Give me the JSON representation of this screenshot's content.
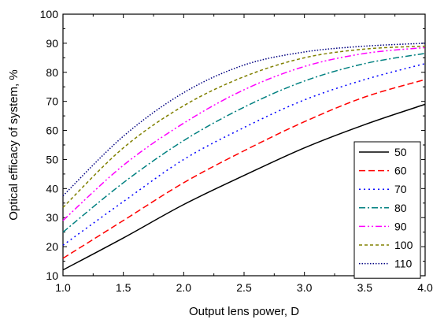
{
  "chart_data": {
    "type": "line",
    "title": "",
    "xlabel": "Output lens power, D",
    "ylabel": "Optical efficacy of system, %",
    "xlim": [
      1.0,
      4.0
    ],
    "ylim": [
      10,
      100
    ],
    "x_ticks": [
      1.0,
      1.5,
      2.0,
      2.5,
      3.0,
      3.5,
      4.0
    ],
    "x_tick_labels": [
      "1.0",
      "1.5",
      "2.0",
      "2.5",
      "3.0",
      "3.5",
      "4.0"
    ],
    "y_ticks": [
      10,
      20,
      30,
      40,
      50,
      60,
      70,
      80,
      90,
      100
    ],
    "y_tick_labels": [
      "10",
      "20",
      "30",
      "40",
      "50",
      "60",
      "70",
      "80",
      "90",
      "100"
    ],
    "grid": false,
    "legend_position": "right",
    "x": [
      1.0,
      1.5,
      2.0,
      2.5,
      3.0,
      3.5,
      4.0
    ],
    "series": [
      {
        "name": "50",
        "color": "#000000",
        "dash": "solid",
        "values": [
          12.0,
          23.0,
          34.5,
          44.5,
          54.0,
          62.0,
          69.0
        ]
      },
      {
        "name": "60",
        "color": "#ff0000",
        "dash": "dash",
        "values": [
          16.0,
          29.0,
          42.0,
          53.0,
          63.0,
          71.5,
          77.5
        ]
      },
      {
        "name": "70",
        "color": "#0000ff",
        "dash": "dot",
        "values": [
          20.5,
          35.5,
          50.0,
          61.0,
          70.5,
          77.5,
          83.0
        ]
      },
      {
        "name": "80",
        "color": "#008080",
        "dash": "dashdot",
        "values": [
          25.0,
          42.0,
          56.5,
          68.0,
          77.0,
          83.0,
          86.5
        ]
      },
      {
        "name": "90",
        "color": "#ff00ff",
        "dash": "dashdotdot",
        "values": [
          29.0,
          48.0,
          62.5,
          74.0,
          82.0,
          86.5,
          88.5
        ]
      },
      {
        "name": "100",
        "color": "#808000",
        "dash": "shortdash",
        "values": [
          33.5,
          54.0,
          68.5,
          78.5,
          85.0,
          88.0,
          89.0
        ]
      },
      {
        "name": "110",
        "color": "#000080",
        "dash": "shortdot",
        "values": [
          37.5,
          58.0,
          73.0,
          82.5,
          87.0,
          89.0,
          90.0
        ]
      }
    ]
  }
}
